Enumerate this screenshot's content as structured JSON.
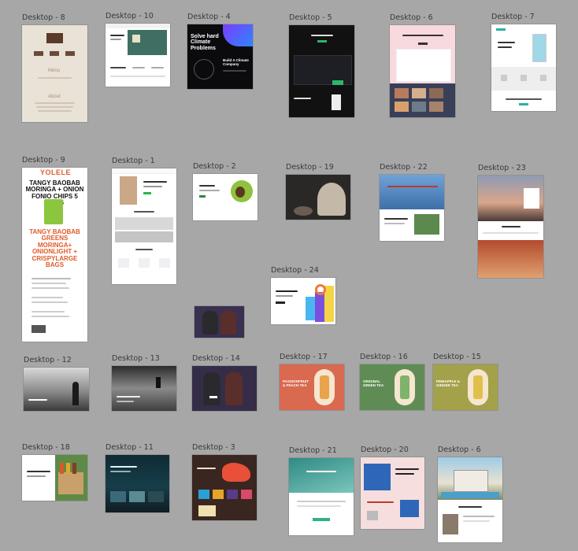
{
  "frames": {
    "f8": "Desktop - 8",
    "f10": "Desktop - 10",
    "f4": "Desktop - 4",
    "f5": "Desktop - 5",
    "f6a": "Desktop - 6",
    "f7": "Desktop - 7",
    "f9": "Desktop - 9",
    "f1": "Desktop - 1",
    "f2": "Desktop - 2",
    "f19": "Desktop - 19",
    "f22": "Desktop - 22",
    "f23": "Desktop - 23",
    "f24": "Desktop - 24",
    "f12": "Desktop - 12",
    "f13": "Desktop - 13",
    "f14": "Desktop - 14",
    "f17": "Desktop - 17",
    "f16": "Desktop - 16",
    "f15": "Desktop - 15",
    "f18": "Desktop - 18",
    "f11": "Desktop - 11",
    "f3": "Desktop - 3",
    "f21": "Desktop - 21",
    "f20": "Desktop - 20",
    "f6b": "Desktop - 6"
  },
  "content": {
    "d8_menu": "Menu",
    "d8_about": "About",
    "d4_headline": "Solve hard Climate Problems",
    "d4_sub": "Build A Climate Company",
    "d9_logo": "YOLELE",
    "d9_hero": "TANGY BAOBAB MORINGA + ONION FONIO CHIPS 5 BAGS",
    "d9_hero2": "TANGY BAOBAB GREENS MORINGA+ ONIONLIGHT + CRISPYLARGE BAGS",
    "d17_text": "PASSIONFRUIT & PEACH TEA",
    "d16_text": "ORIGINAL GREEN TEA",
    "d15_text": "PINEAPPLE & GINGER TEA"
  },
  "colors": {
    "canvas": "#a7a7a7",
    "d17": "#d9694f",
    "d16": "#5f8c54",
    "d15": "#a3a14a"
  }
}
